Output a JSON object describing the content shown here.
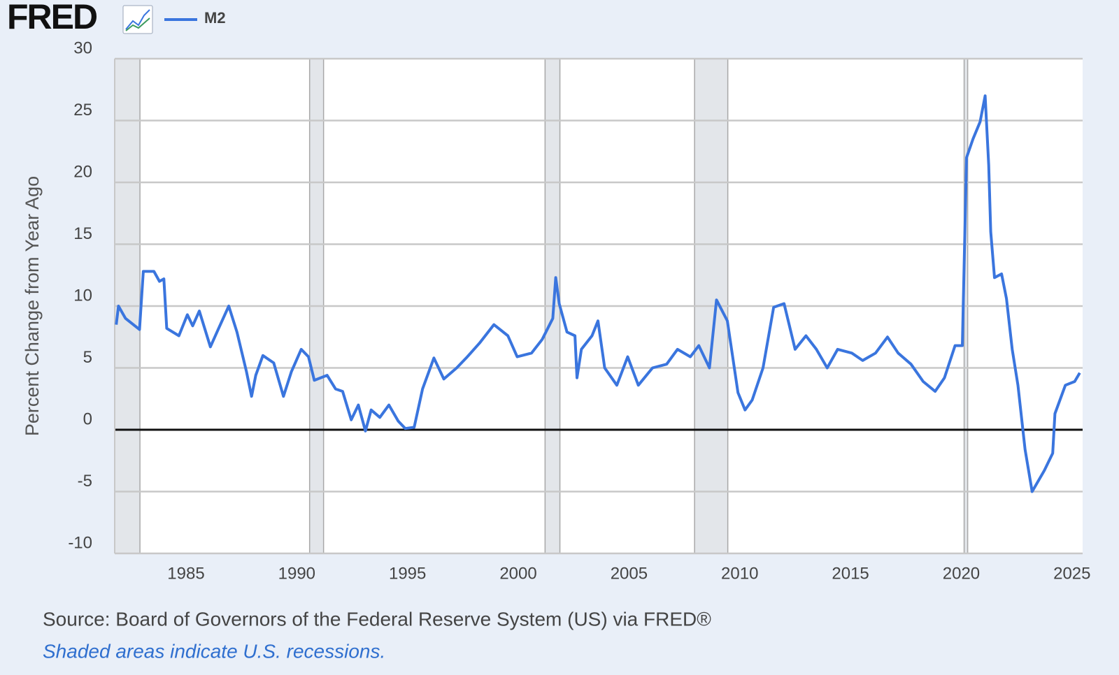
{
  "chart_data": {
    "type": "line",
    "logo": "FRED",
    "y_label": "Percent Change from Year Ago",
    "source": "Source: Board of Governors of the Federal Reserve System (US) via FRED®",
    "note": "Shaded areas indicate U.S. recessions.",
    "x": [
      1981.85,
      1981.95,
      1982.27,
      1982.9,
      1983.07,
      1983.55,
      1983.8,
      1984.0,
      1984.13,
      1984.68,
      1985.06,
      1985.3,
      1985.6,
      1986.1,
      1986.45,
      1986.93,
      1987.3,
      1987.73,
      1987.96,
      1988.15,
      1988.47,
      1988.96,
      1989.4,
      1989.76,
      1990.2,
      1990.53,
      1990.79,
      1991.37,
      1991.75,
      1992.07,
      1992.46,
      1992.78,
      1993.1,
      1993.36,
      1993.75,
      1994.16,
      1994.58,
      1994.9,
      1995.3,
      1995.68,
      1996.19,
      1996.64,
      1997.22,
      1997.7,
      1998.25,
      1998.9,
      1999.53,
      1999.95,
      2000.6,
      2001.08,
      2001.56,
      2001.69,
      2001.85,
      2002.2,
      2002.56,
      2002.65,
      2002.85,
      2003.33,
      2003.6,
      2003.9,
      2004.45,
      2004.94,
      2005.42,
      2006.06,
      2006.7,
      2007.19,
      2007.77,
      2008.15,
      2008.63,
      2008.95,
      2009.44,
      2009.92,
      2010.24,
      2010.56,
      2011.05,
      2011.53,
      2012.0,
      2012.5,
      2012.99,
      2013.46,
      2013.95,
      2014.42,
      2015.06,
      2015.55,
      2016.13,
      2016.67,
      2017.15,
      2017.73,
      2018.28,
      2018.82,
      2019.24,
      2019.72,
      2020.05,
      2020.24,
      2020.53,
      2020.85,
      2021.08,
      2021.24,
      2021.33,
      2021.5,
      2021.82,
      2022.04,
      2022.3,
      2022.56,
      2022.88,
      2023.2,
      2023.75,
      2024.13,
      2024.23,
      2024.7,
      2025.12,
      2025.35
    ],
    "series": [
      {
        "name": "M2",
        "color": "#3a75de",
        "values": [
          8.5,
          10,
          9,
          8.1,
          12.8,
          12.8,
          12,
          12.2,
          8.2,
          7.6,
          9.3,
          8.4,
          9.6,
          6.7,
          8.1,
          10,
          7.9,
          4.7,
          2.7,
          4.4,
          6,
          5.4,
          2.7,
          4.7,
          6.5,
          5.9,
          4,
          4.4,
          3.3,
          3.1,
          0.8,
          2,
          -0.1,
          1.6,
          1,
          2,
          0.7,
          0.1,
          0.2,
          3.3,
          5.8,
          4.1,
          5,
          5.9,
          7,
          8.5,
          7.6,
          5.9,
          6.2,
          7.3,
          9,
          12.3,
          10.2,
          7.9,
          7.6,
          4.2,
          6.5,
          7.6,
          8.8,
          5,
          3.6,
          5.9,
          3.6,
          5,
          5.3,
          6.5,
          5.9,
          6.8,
          5,
          10.5,
          8.8,
          3,
          1.6,
          2.4,
          5,
          9.9,
          10.2,
          6.5,
          7.6,
          6.5,
          5,
          6.5,
          6.2,
          5.6,
          6.2,
          7.5,
          6.2,
          5.3,
          3.9,
          3.1,
          4.2,
          6.8,
          6.8,
          22,
          23.5,
          24.9,
          27,
          21.4,
          16,
          12.3,
          12.6,
          10.6,
          6.5,
          3.6,
          -1.6,
          -5,
          -3.3,
          -1.9,
          1.3,
          3.6,
          3.9,
          4.6
        ]
      }
    ],
    "recessions": [
      [
        1981.5,
        1982.92
      ],
      [
        1990.58,
        1991.21
      ],
      [
        2001.21,
        2001.88
      ],
      [
        2007.96,
        2009.46
      ],
      [
        2020.13,
        2020.29
      ]
    ],
    "xlim": [
      1981.78,
      2025.48
    ],
    "xticks": [
      1985,
      1990,
      1995,
      2000,
      2005,
      2010,
      2015,
      2020,
      2025
    ],
    "ylim": [
      -10,
      30
    ],
    "yticks": [
      -10,
      -5,
      0,
      5,
      10,
      15,
      20,
      25,
      30
    ],
    "grid": true
  }
}
